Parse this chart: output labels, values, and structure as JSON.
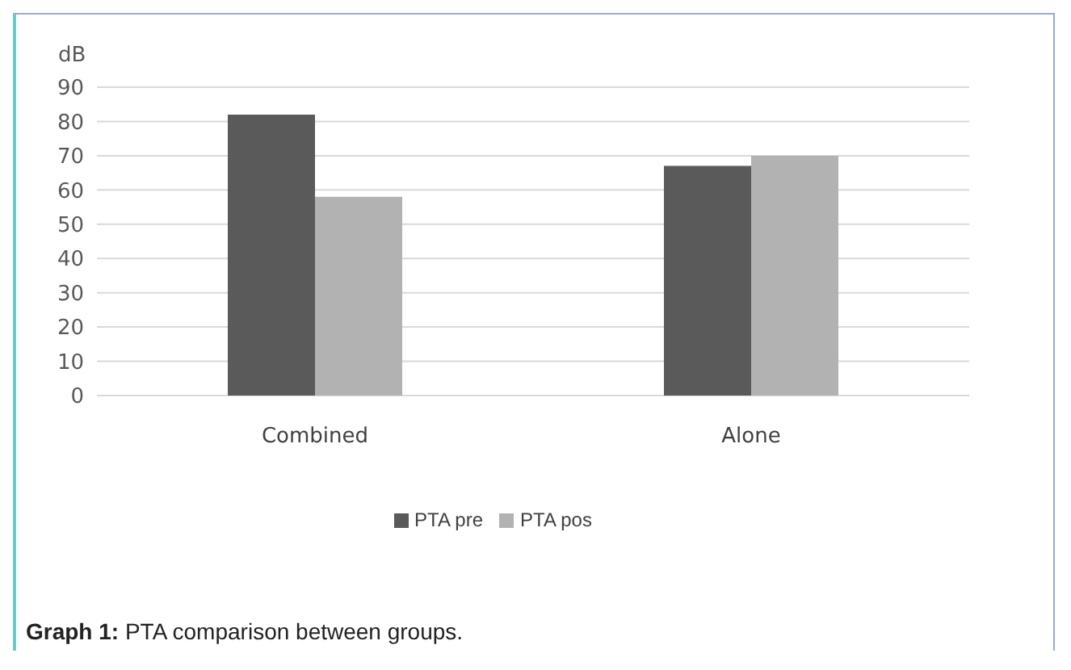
{
  "chart_data": {
    "type": "bar",
    "ylabel": "dB",
    "categories": [
      "Combined",
      "Alone"
    ],
    "series": [
      {
        "name": "PTA pre",
        "color": "#5a5a5a",
        "values": [
          82,
          67
        ]
      },
      {
        "name": "PTA pos",
        "color": "#b2b2b2",
        "values": [
          58,
          70
        ]
      }
    ],
    "ylim": [
      0,
      90
    ],
    "yticks": [
      0,
      10,
      20,
      30,
      40,
      50,
      60,
      70,
      80,
      90
    ],
    "grid": "y",
    "legend": "bottom",
    "annotations": [
      "Graph 1: PTA comparison between groups."
    ]
  }
}
